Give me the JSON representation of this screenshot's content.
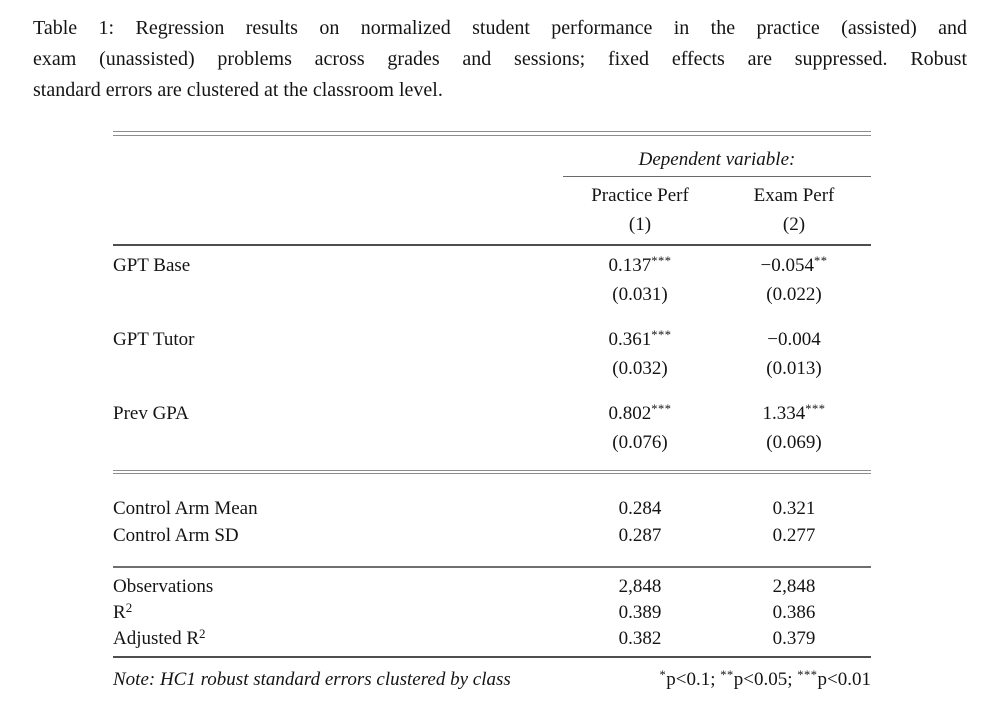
{
  "caption": {
    "lines": [
      "Table 1: Regression results on normalized student performance in the practice (assisted) and",
      "exam (unassisted) problems across grades and sessions; fixed effects are suppressed. Robust",
      "standard errors are clustered at the classroom level."
    ]
  },
  "table": {
    "dependent_variable_header": "Dependent variable:",
    "columns": [
      {
        "name": "Practice Perf",
        "number": "(1)"
      },
      {
        "name": "Exam Perf",
        "number": "(2)"
      }
    ],
    "coefficients": [
      {
        "label": "GPT Base",
        "cells": [
          {
            "value": "0.137",
            "stars": "***",
            "se": "(0.031)"
          },
          {
            "value": "−0.054",
            "stars": "**",
            "se": "(0.022)"
          }
        ]
      },
      {
        "label": "GPT Tutor",
        "cells": [
          {
            "value": "0.361",
            "stars": "***",
            "se": "(0.032)"
          },
          {
            "value": "−0.004",
            "stars": "",
            "se": "(0.013)"
          }
        ]
      },
      {
        "label": "Prev GPA",
        "cells": [
          {
            "value": "0.802",
            "stars": "***",
            "se": "(0.076)"
          },
          {
            "value": "1.334",
            "stars": "***",
            "se": "(0.069)"
          }
        ]
      }
    ],
    "summary_rows": [
      {
        "label": "Control Arm Mean",
        "values": [
          "0.284",
          "0.321"
        ]
      },
      {
        "label": "Control Arm SD",
        "values": [
          "0.287",
          "0.277"
        ]
      }
    ],
    "stat_rows": [
      {
        "label": "Observations",
        "label_sup": "",
        "values": [
          "2,848",
          "2,848"
        ]
      },
      {
        "label": "R",
        "label_sup": "2",
        "values": [
          "0.389",
          "0.386"
        ]
      },
      {
        "label": "Adjusted R",
        "label_sup": "2",
        "values": [
          "0.382",
          "0.379"
        ]
      }
    ],
    "note": "Note: HC1 robust standard errors clustered by class",
    "significance": [
      {
        "stars": "*",
        "text": "p<0.1; "
      },
      {
        "stars": "**",
        "text": "p<0.05; "
      },
      {
        "stars": "***",
        "text": "p<0.01"
      }
    ]
  }
}
